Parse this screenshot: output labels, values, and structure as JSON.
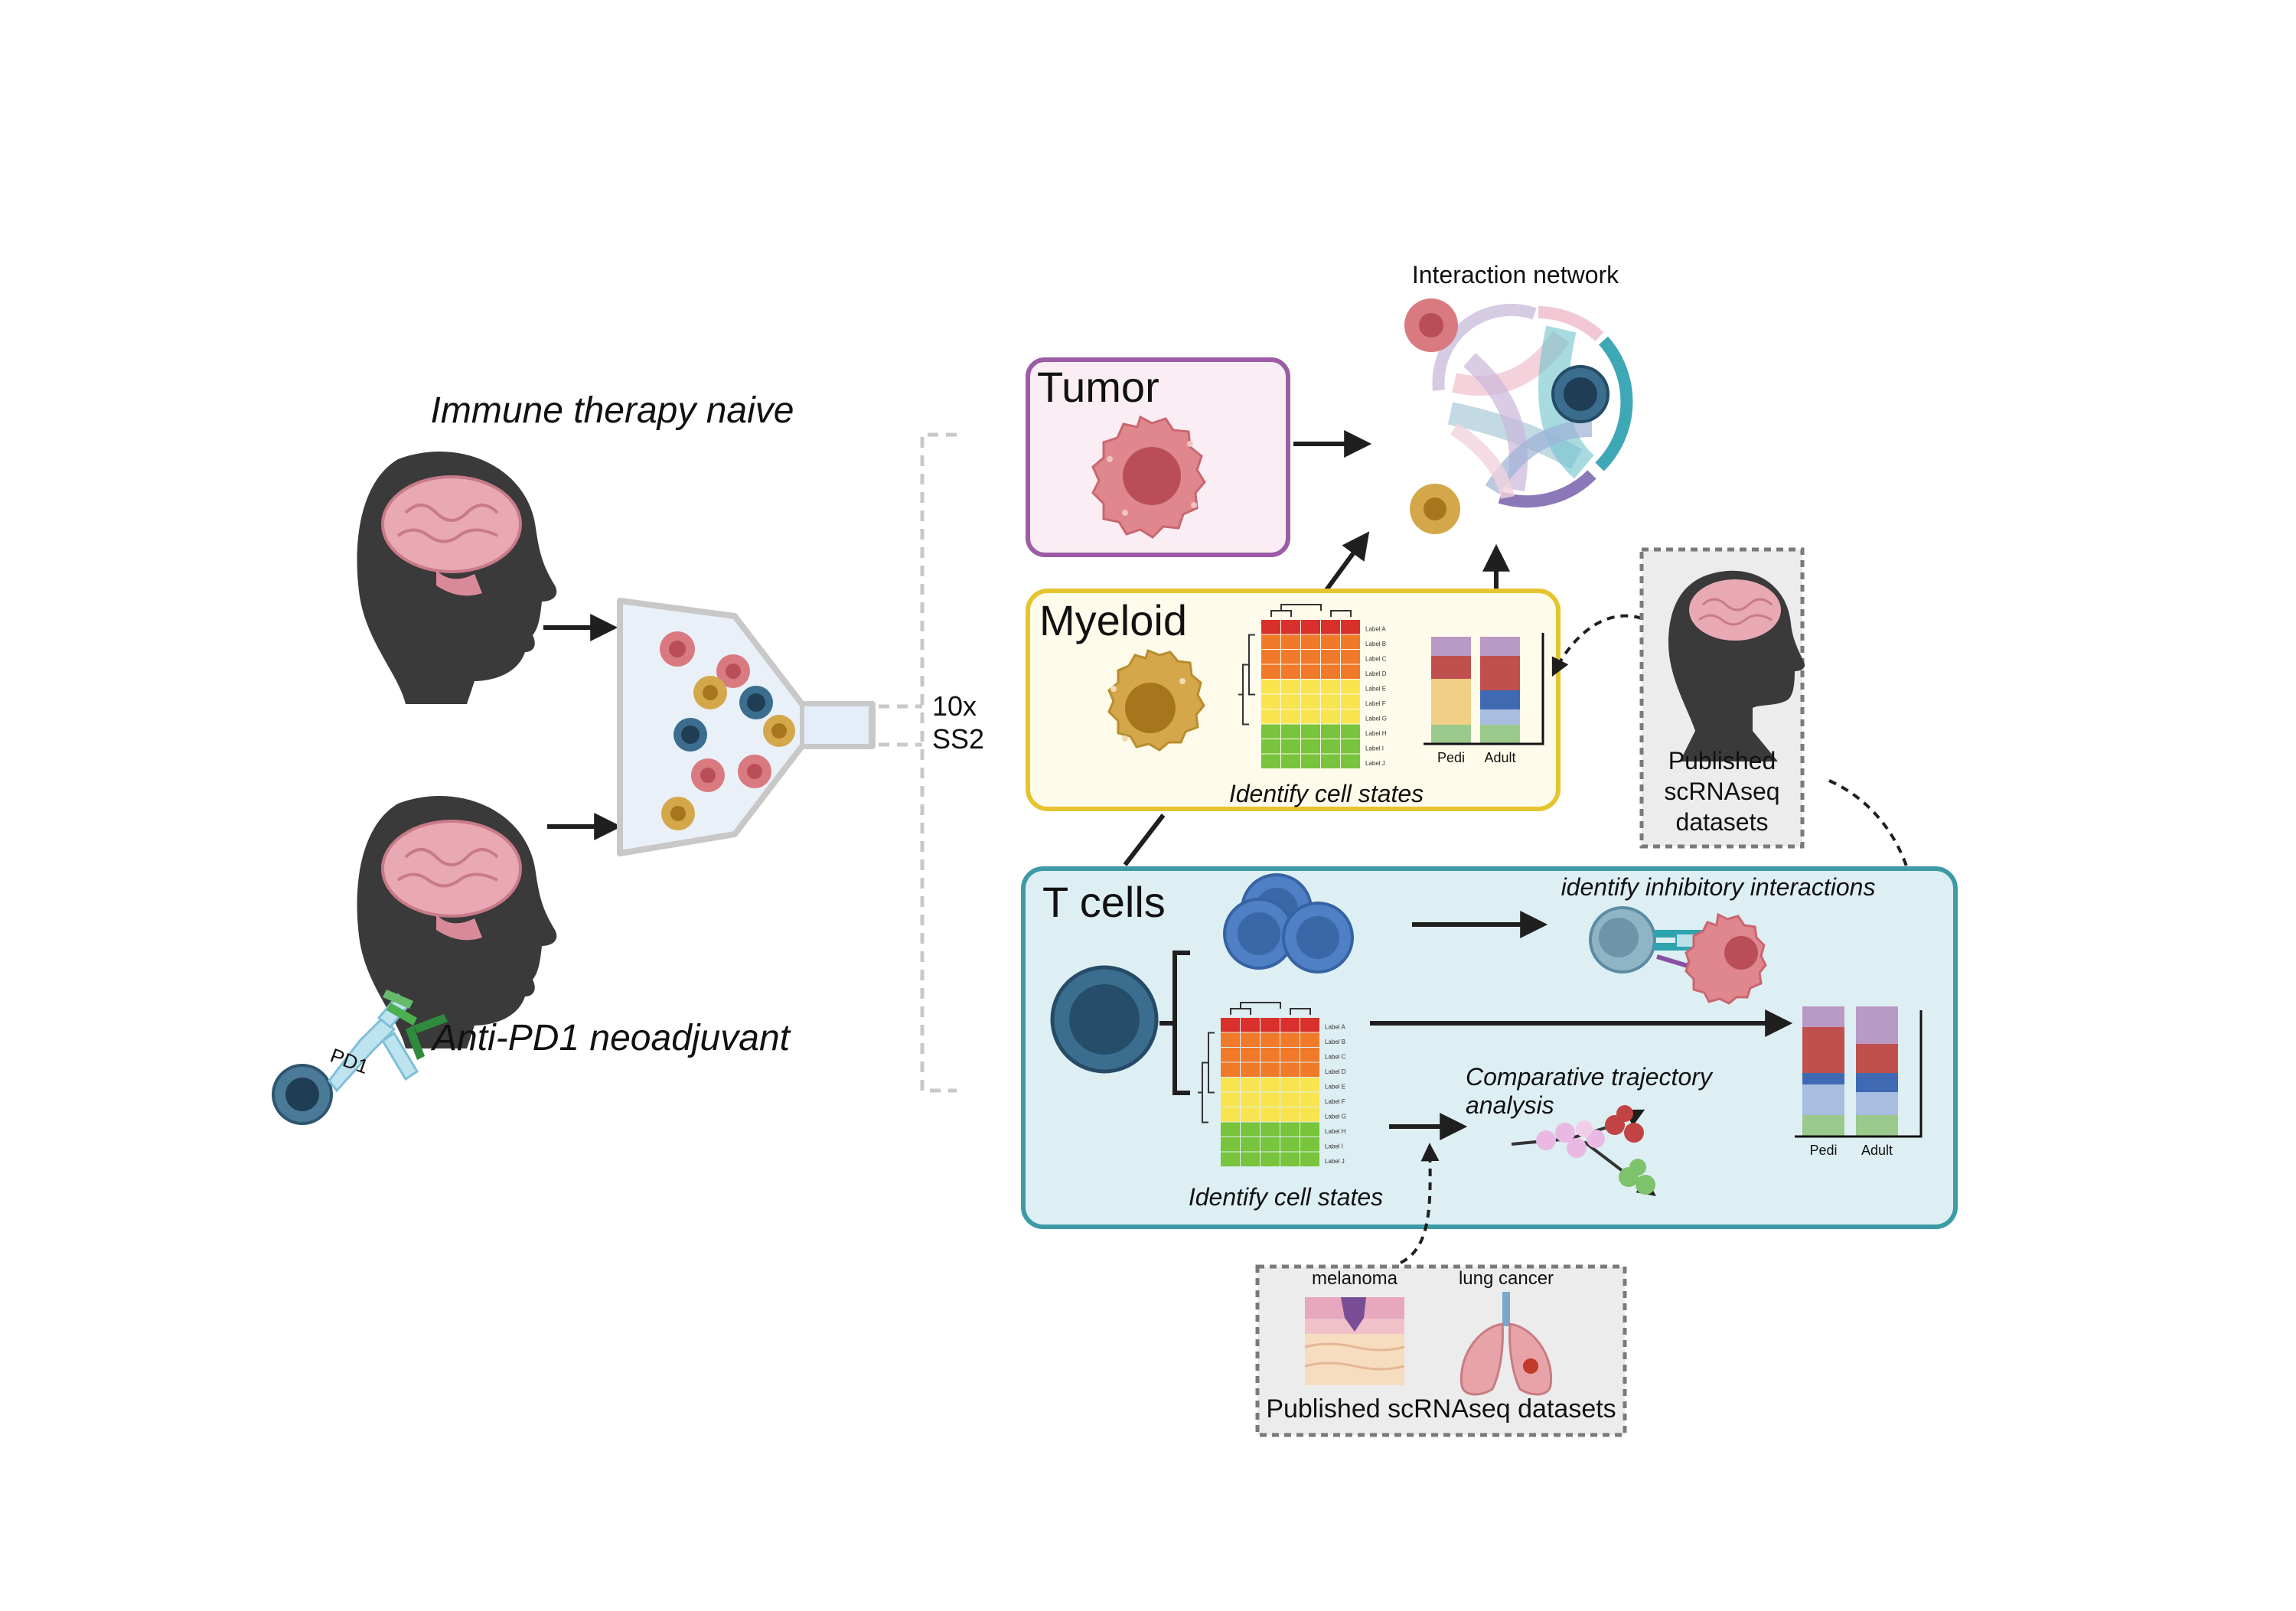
{
  "patients": {
    "naive_label": "Immune therapy naive",
    "antipd1_label": "Anti-PD1 neoadjuvant",
    "pd1_label": "PD1"
  },
  "sequencing": {
    "line1": "10x",
    "line2": "SS2"
  },
  "tumor": {
    "title": "Tumor"
  },
  "network": {
    "title": "Interaction network"
  },
  "myeloid": {
    "title": "Myeloid",
    "caption": "Identify cell states",
    "bar_categories": [
      "Pedi",
      "Adult"
    ]
  },
  "heatmap_row_labels": [
    "Label A",
    "Label B",
    "Label C",
    "Label D",
    "Label E",
    "Label F",
    "Label G",
    "Label H",
    "Label I",
    "Label J"
  ],
  "published_right": {
    "line1": "Published",
    "line2": "scRNAseq",
    "line3": "datasets"
  },
  "tcells": {
    "title": "T cells",
    "inhibitory_caption": "identify inhibitory interactions",
    "trajectory_line1": "Comparative trajectory",
    "trajectory_line2": "analysis",
    "caption": "Identify cell states",
    "bar_categories": [
      "Pedi",
      "Adult"
    ]
  },
  "published_bottom": {
    "title": "Published scRNAseq datasets",
    "melanoma": "melanoma",
    "lung": "lung cancer"
  },
  "colors": {
    "tumor_box": "#9c5ca6",
    "myeloid_box": "#e6c430",
    "tcell_box": "#3d9aa6",
    "tcell_fill": "#deeff3",
    "tumor_fill": "#faeef4",
    "myeloid_fill": "#fffbea"
  }
}
